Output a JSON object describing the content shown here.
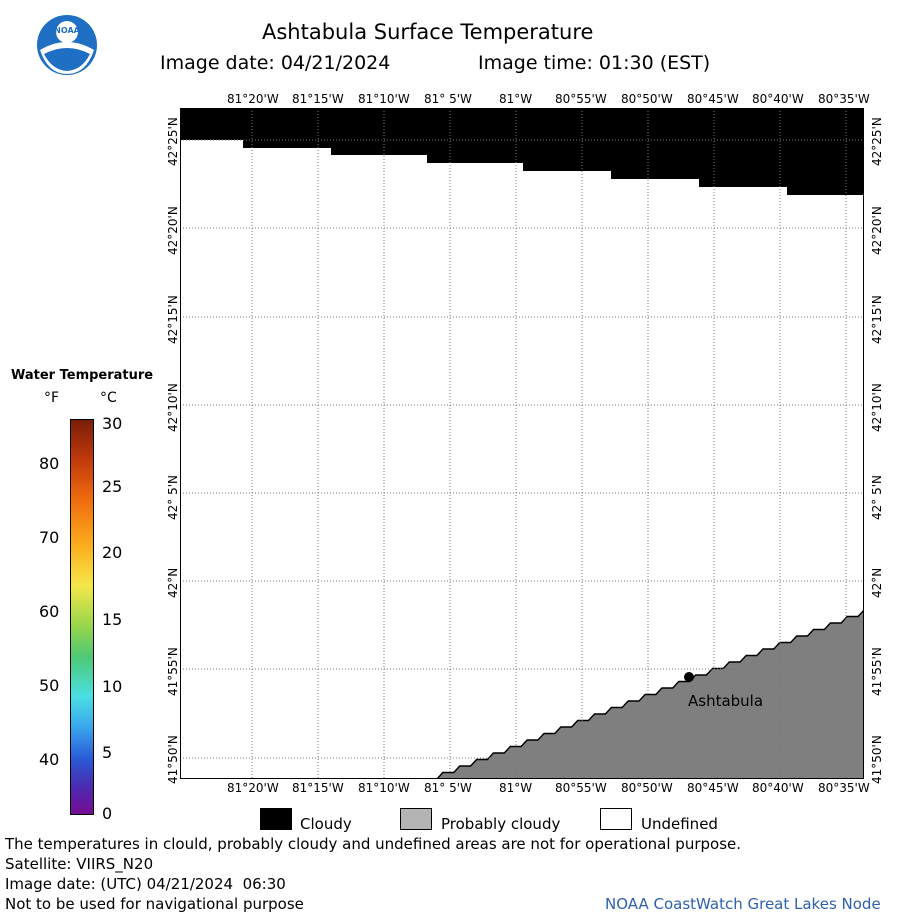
{
  "header": {
    "title": "Ashtabula Surface Temperature",
    "image_date_label": "Image date: 04/21/2024",
    "image_time_label": "Image time: 01:30 (EST)"
  },
  "logo": {
    "text": "NOAA"
  },
  "map": {
    "top_ticks": [
      "81°20'W",
      "81°15'W",
      "81°10'W",
      "81° 5'W",
      "81°W",
      "80°55'W",
      "80°50'W",
      "80°45'W",
      "80°40'W",
      "80°35'W"
    ],
    "bottom_ticks": [
      "81°20'W",
      "81°15'W",
      "81°10'W",
      "81° 5'W",
      "81°W",
      "80°55'W",
      "80°50'W",
      "80°45'W",
      "80°40'W",
      "80°35'W"
    ],
    "left_ticks": [
      "42°25'N",
      "42°20'N",
      "42°15'N",
      "42°10'N",
      "42° 5'N",
      "42°N",
      "41°55'N",
      "41°50'N"
    ],
    "right_ticks": [
      "42°25'N",
      "42°20'N",
      "42°15'N",
      "42°10'N",
      "42° 5'N",
      "42°N",
      "41°55'N",
      "41°50'N"
    ],
    "city_label": "Ashtabula",
    "colors": {
      "cloudy": "#000000",
      "land": "#7f7f7f",
      "undefined": "#ffffff",
      "grid": "#777777"
    }
  },
  "colorbar": {
    "title": "Water Temperature",
    "unit_f": "°F",
    "unit_c": "°C",
    "f_labels": [
      "80",
      "70",
      "60",
      "50",
      "40"
    ],
    "c_labels": [
      "30",
      "25",
      "20",
      "15",
      "10",
      "5",
      "0"
    ]
  },
  "legend": {
    "cloudy": "Cloudy",
    "probably_cloudy": "Probably cloudy",
    "undefined": "Undefined",
    "colors": {
      "cloudy": "#000000",
      "probably_cloudy": "#b4b4b4",
      "undefined": "#ffffff"
    }
  },
  "footer": {
    "disclaimer": "The temperatures in clould, probably cloudy and undefined areas are not for operational purpose.",
    "satellite": "Satellite: VIIRS_N20",
    "utc_date": "Image date: (UTC) 04/21/2024  06:30",
    "nav_warning": "Not to be used for navigational purpose",
    "credit": "NOAA CoastWatch Great Lakes Node"
  }
}
